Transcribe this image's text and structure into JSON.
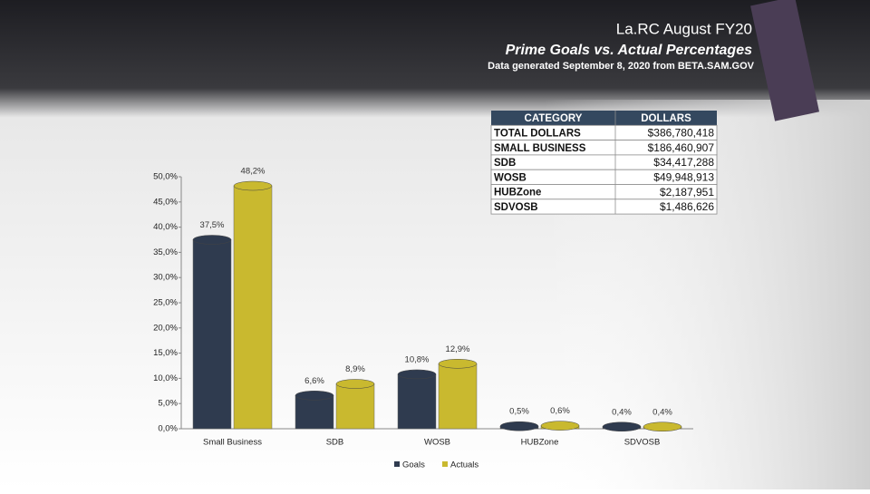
{
  "header": {
    "title": "La.RC August FY20",
    "subtitle": "Prime Goals vs. Actual Percentages",
    "note": "Data generated September 8, 2020 from BETA.SAM.GOV"
  },
  "table": {
    "headers": [
      "CATEGORY",
      "DOLLARS"
    ],
    "rows": [
      [
        "TOTAL DOLLARS",
        "$386,780,418"
      ],
      [
        "SMALL BUSINESS",
        "$186,460,907"
      ],
      [
        "SDB",
        "$34,417,288"
      ],
      [
        "WOSB",
        "$49,948,913"
      ],
      [
        "HUBZone",
        "$2,187,951"
      ],
      [
        "SDVOSB",
        "$1,486,626"
      ]
    ]
  },
  "chart_data": {
    "type": "bar",
    "categories": [
      "Small Business",
      "SDB",
      "WOSB",
      "HUBZone",
      "SDVOSB"
    ],
    "series": [
      {
        "name": "Goals",
        "color": "#2f3b4f",
        "values": [
          37.5,
          6.6,
          10.8,
          0.5,
          0.4
        ],
        "value_labels": [
          "37,5%",
          "6,6%",
          "10,8%",
          "0,5%",
          "0,4%"
        ]
      },
      {
        "name": "Actuals",
        "color": "#c9b92f",
        "values": [
          48.2,
          8.9,
          12.9,
          0.6,
          0.4
        ],
        "value_labels": [
          "48,2%",
          "8,9%",
          "12,9%",
          "0,6%",
          "0,4%"
        ]
      }
    ],
    "ylim": [
      0,
      50
    ],
    "yticks": [
      {
        "value": 0,
        "label": "0,0%"
      },
      {
        "value": 5,
        "label": "5,0%"
      },
      {
        "value": 10,
        "label": "10,0%"
      },
      {
        "value": 15,
        "label": "15,0%"
      },
      {
        "value": 20,
        "label": "20,0%"
      },
      {
        "value": 25,
        "label": "25,0%"
      },
      {
        "value": 30,
        "label": "30,0%"
      },
      {
        "value": 35,
        "label": "35,0%"
      },
      {
        "value": 40,
        "label": "40,0%"
      },
      {
        "value": 45,
        "label": "45,0%"
      },
      {
        "value": 50,
        "label": "50,0%"
      }
    ],
    "grid": false,
    "legend": "bottom"
  }
}
